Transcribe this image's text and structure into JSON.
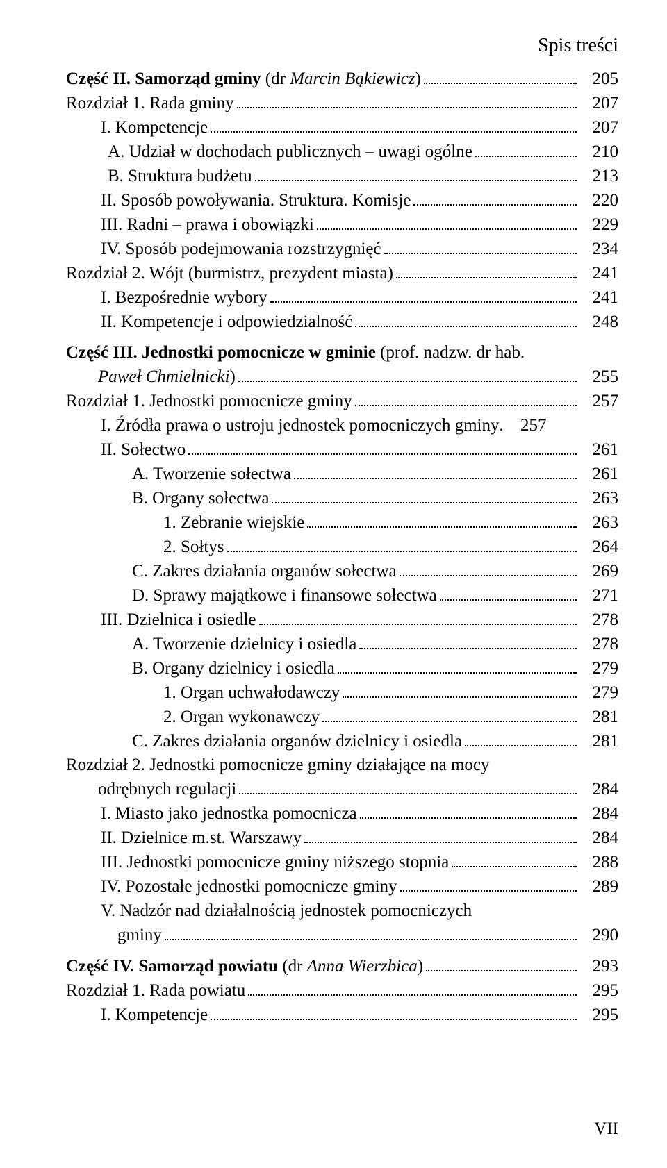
{
  "header": "Spis treści",
  "footer": "VII",
  "lines": [
    {
      "indent": "ind0",
      "segments": [
        {
          "t": "Część II. Samorząd gminy ",
          "b": true
        },
        {
          "t": "(dr ",
          "b": false
        },
        {
          "t": "Marcin Bąkiewicz",
          "i": true
        },
        {
          "t": ")",
          "b": false
        }
      ],
      "page": "205",
      "gap": false
    },
    {
      "indent": "ind0",
      "segments": [
        {
          "t": "Rozdział 1. Rada gminy"
        }
      ],
      "page": "207"
    },
    {
      "indent": "ind1",
      "segments": [
        {
          "t": "I. Kompetencje"
        }
      ],
      "page": "207"
    },
    {
      "indent": "ind1b",
      "segments": [
        {
          "t": "A. Udział w dochodach publicznych – uwagi ogólne"
        }
      ],
      "page": "210"
    },
    {
      "indent": "ind1b",
      "segments": [
        {
          "t": "B. Struktura budżetu"
        }
      ],
      "page": "213"
    },
    {
      "indent": "ind1",
      "segments": [
        {
          "t": "II. Sposób powoływania. Struktura. Komisje"
        }
      ],
      "page": "220"
    },
    {
      "indent": "ind1",
      "segments": [
        {
          "t": "III. Radni – prawa i obowiązki"
        }
      ],
      "page": "229"
    },
    {
      "indent": "ind1",
      "segments": [
        {
          "t": "IV. Sposób podejmowania rozstrzygnięć"
        }
      ],
      "page": "234"
    },
    {
      "indent": "ind0",
      "segments": [
        {
          "t": "Rozdział 2. Wójt (burmistrz, prezydent miasta)"
        }
      ],
      "page": "241"
    },
    {
      "indent": "ind1",
      "segments": [
        {
          "t": "I. Bezpośrednie wybory"
        }
      ],
      "page": "241"
    },
    {
      "indent": "ind1",
      "segments": [
        {
          "t": "II. Kompetencje i odpowiedzialność"
        }
      ],
      "page": "248"
    },
    {
      "indent": "ind0",
      "segments": [
        {
          "t": "Część III. Jednostki pomocnicze w gminie ",
          "b": true
        },
        {
          "t": "(prof. nadzw. dr hab.",
          "b": false
        }
      ],
      "nopage": true,
      "gap": true
    },
    {
      "indent": "ind-hang",
      "segments": [
        {
          "t": "Paweł Chmielnicki",
          "i": true
        },
        {
          "t": ")"
        }
      ],
      "page": "255"
    },
    {
      "indent": "ind0",
      "segments": [
        {
          "t": "Rozdział 1. Jednostki pomocnicze gminy"
        }
      ],
      "page": "257"
    },
    {
      "indent": "ind1",
      "segments": [
        {
          "t": "I. Źródła prawa o ustroju jednostek pomocniczych gminy"
        }
      ],
      "page": "257",
      "shortdots": true
    },
    {
      "indent": "ind1",
      "segments": [
        {
          "t": "II. Sołectwo"
        }
      ],
      "page": "261"
    },
    {
      "indent": "ind2",
      "segments": [
        {
          "t": "A. Tworzenie sołectwa"
        }
      ],
      "page": "261"
    },
    {
      "indent": "ind2",
      "segments": [
        {
          "t": "B. Organy sołectwa"
        }
      ],
      "page": "263"
    },
    {
      "indent": "ind3",
      "segments": [
        {
          "t": "1. Zebranie wiejskie"
        }
      ],
      "page": "263"
    },
    {
      "indent": "ind3",
      "segments": [
        {
          "t": "2. Sołtys"
        }
      ],
      "page": "264"
    },
    {
      "indent": "ind2",
      "segments": [
        {
          "t": "C. Zakres działania organów sołectwa"
        }
      ],
      "page": "269"
    },
    {
      "indent": "ind2",
      "segments": [
        {
          "t": "D. Sprawy majątkowe i finansowe sołectwa"
        }
      ],
      "page": "271"
    },
    {
      "indent": "ind1",
      "segments": [
        {
          "t": "III. Dzielnica i osiedle"
        }
      ],
      "page": "278"
    },
    {
      "indent": "ind2",
      "segments": [
        {
          "t": "A. Tworzenie dzielnicy i osiedla"
        }
      ],
      "page": "278"
    },
    {
      "indent": "ind2",
      "segments": [
        {
          "t": "B. Organy dzielnicy i osiedla"
        }
      ],
      "page": "279"
    },
    {
      "indent": "ind3",
      "segments": [
        {
          "t": "1. Organ uchwałodawczy"
        }
      ],
      "page": "279"
    },
    {
      "indent": "ind3",
      "segments": [
        {
          "t": "2. Organ wykonawczy"
        }
      ],
      "page": "281"
    },
    {
      "indent": "ind2",
      "segments": [
        {
          "t": "C. Zakres działania organów dzielnicy i osiedla"
        }
      ],
      "page": "281"
    },
    {
      "indent": "ind0",
      "segments": [
        {
          "t": "Rozdział 2. Jednostki pomocnicze gminy działające na mocy"
        }
      ],
      "nopage": true
    },
    {
      "indent": "ind-hang",
      "segments": [
        {
          "t": "odrębnych regulacji"
        }
      ],
      "page": "284"
    },
    {
      "indent": "ind1",
      "segments": [
        {
          "t": "I. Miasto jako jednostka pomocnicza"
        }
      ],
      "page": "284"
    },
    {
      "indent": "ind1",
      "segments": [
        {
          "t": "II. Dzielnice m.st. Warszawy"
        }
      ],
      "page": "284"
    },
    {
      "indent": "ind1",
      "segments": [
        {
          "t": "III. Jednostki pomocnicze gminy niższego stopnia"
        }
      ],
      "page": "288"
    },
    {
      "indent": "ind1",
      "segments": [
        {
          "t": "IV. Pozostałe jednostki pomocnicze gminy"
        }
      ],
      "page": "289"
    },
    {
      "indent": "ind1",
      "segments": [
        {
          "t": "V. Nadzór nad działalnością jednostek pomocniczych"
        }
      ],
      "nopage": true
    },
    {
      "indent": "continuation-indent",
      "segments": [
        {
          "t": "gminy"
        }
      ],
      "page": "290"
    },
    {
      "indent": "ind0",
      "segments": [
        {
          "t": "Część IV. Samorząd powiatu ",
          "b": true
        },
        {
          "t": "(dr "
        },
        {
          "t": "Anna Wierzbica",
          "i": true
        },
        {
          "t": ")"
        }
      ],
      "page": "293",
      "gap": true
    },
    {
      "indent": "ind0",
      "segments": [
        {
          "t": "Rozdział 1. Rada powiatu"
        }
      ],
      "page": "295"
    },
    {
      "indent": "ind1",
      "segments": [
        {
          "t": "I. Kompetencje"
        }
      ],
      "page": "295"
    }
  ]
}
